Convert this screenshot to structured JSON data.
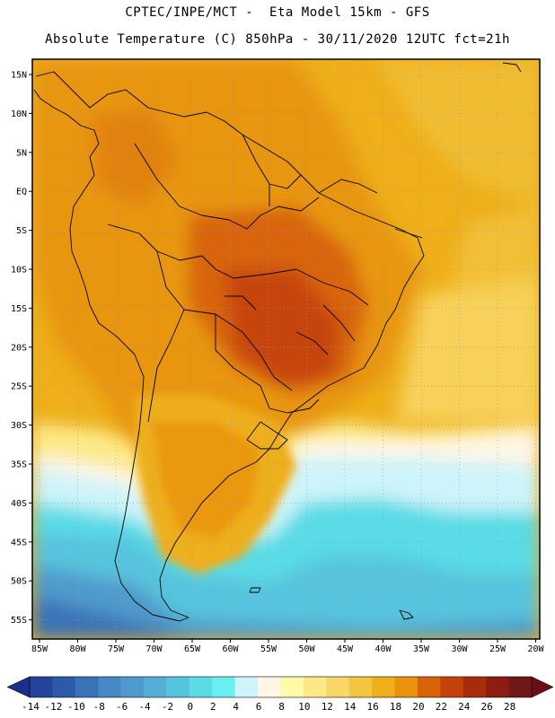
{
  "header": {
    "line1": "CPTEC/INPE/MCT -  Eta Model 15km - GFS",
    "line2": "Absolute Temperature (C) 850hPa - 30/11/2020 12UTC fct=21h"
  },
  "axes": {
    "lat_labels": [
      "15N",
      "10N",
      "5N",
      "EQ",
      "5S",
      "10S",
      "15S",
      "20S",
      "25S",
      "30S",
      "35S",
      "40S",
      "45S",
      "50S",
      "55S"
    ],
    "lon_labels": [
      "85W",
      "80W",
      "75W",
      "70W",
      "65W",
      "60W",
      "55W",
      "50W",
      "45W",
      "40W",
      "35W",
      "30W",
      "25W",
      "20W"
    ]
  },
  "colorbar": {
    "labels": [
      "-14",
      "-12",
      "-10",
      "-8",
      "-6",
      "-4",
      "-2",
      "0",
      "2",
      "4",
      "6",
      "8",
      "10",
      "12",
      "14",
      "16",
      "18",
      "20",
      "22",
      "24",
      "26",
      "28"
    ],
    "colors": [
      "#23449a",
      "#2d5aa8",
      "#3a72b8",
      "#4687c4",
      "#4f9acc",
      "#55aed6",
      "#56c4dd",
      "#5adbe6",
      "#6af0f0",
      "#cdf4fa",
      "#fff6e6",
      "#fefaa8",
      "#fce986",
      "#f9d766",
      "#f3c642",
      "#eeaf1a",
      "#e8920e",
      "#d76207",
      "#c4410a",
      "#a82b0a",
      "#8c1d12",
      "#701818"
    ],
    "under_color": "#1b2f88",
    "over_color": "#6a0f14"
  }
}
